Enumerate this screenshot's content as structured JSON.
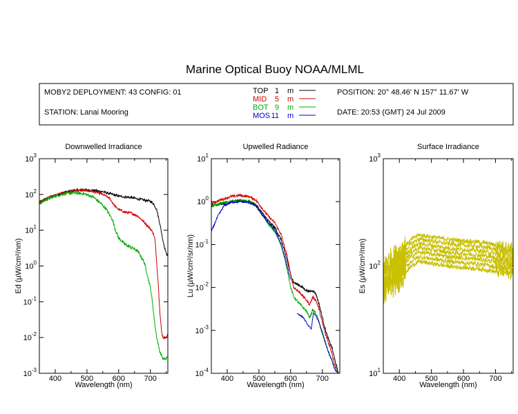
{
  "title": "Marine Optical Buoy NOAA/MLML",
  "info": {
    "deployment": "MOBY2 DEPLOYMENT: 43 CONFIG: 01",
    "station": "STATION: Lanai Mooring",
    "position": "POSITION: 20° 48.46' N   157° 11.67' W",
    "date": "DATE: 20:53 (GMT) 24 Jul 2009"
  },
  "legend": [
    {
      "name": "TOP",
      "depth": "1",
      "unit": "m",
      "color": "#000000"
    },
    {
      "name": "MID",
      "depth": "5",
      "unit": "m",
      "color": "#cc0000"
    },
    {
      "name": "BOT",
      "depth": "9",
      "unit": "m",
      "color": "#00aa00"
    },
    {
      "name": "MOS",
      "depth": "11",
      "unit": "m",
      "color": "#0000cc"
    }
  ],
  "chart_data": [
    {
      "type": "line",
      "title": "Downwelled Irradiance",
      "xlabel": "Wavelength (nm)",
      "ylabel_prefix": "Ed",
      "ylabel_unit": "(µW/cm²/nm)",
      "xlim": [
        350,
        755
      ],
      "ylim": [
        0.001,
        1000
      ],
      "yscale": "log",
      "xticks": [
        400,
        500,
        600,
        700
      ],
      "yticks": [
        {
          "v": 0.001,
          "b": "10",
          "e": "-3"
        },
        {
          "v": 0.01,
          "b": "10",
          "e": "-2"
        },
        {
          "v": 0.1,
          "b": "10",
          "e": "-1"
        },
        {
          "v": 1,
          "b": "10",
          "e": "0"
        },
        {
          "v": 10,
          "b": "10",
          "e": "1"
        },
        {
          "v": 100,
          "b": "10",
          "e": "2"
        },
        {
          "v": 1000,
          "b": "10",
          "e": "3"
        }
      ],
      "series": [
        {
          "name": "TOP",
          "color": "#000000",
          "noise": 0.08,
          "x": [
            350,
            370,
            400,
            430,
            460,
            490,
            520,
            550,
            580,
            600,
            620,
            640,
            660,
            680,
            700,
            710,
            720,
            730,
            740,
            750,
            755
          ],
          "y": [
            60,
            75,
            95,
            115,
            130,
            135,
            130,
            120,
            100,
            90,
            85,
            82,
            75,
            70,
            65,
            55,
            38,
            15,
            5,
            2.2,
            2
          ]
        },
        {
          "name": "MID",
          "color": "#cc0000",
          "noise": 0.08,
          "x": [
            350,
            370,
            400,
            430,
            460,
            490,
            520,
            550,
            570,
            580,
            590,
            600,
            620,
            640,
            660,
            680,
            700,
            710,
            715,
            720,
            725,
            730,
            735,
            740,
            750,
            755
          ],
          "y": [
            60,
            75,
            95,
            115,
            125,
            130,
            120,
            100,
            80,
            60,
            45,
            38,
            32,
            30,
            25,
            17,
            11,
            8,
            5,
            1.2,
            0.3,
            0.05,
            0.015,
            0.01,
            0.01,
            0.012
          ]
        },
        {
          "name": "BOT",
          "color": "#00aa00",
          "noise": 0.1,
          "x": [
            350,
            370,
            400,
            430,
            460,
            490,
            520,
            540,
            560,
            580,
            590,
            600,
            620,
            640,
            660,
            680,
            690,
            700,
            705,
            710,
            715,
            720,
            730,
            740,
            750,
            755
          ],
          "y": [
            55,
            70,
            90,
            105,
            110,
            105,
            85,
            60,
            40,
            20,
            10,
            6,
            4,
            3.3,
            2.6,
            1.3,
            0.6,
            0.25,
            0.12,
            0.05,
            0.02,
            0.01,
            0.004,
            0.0025,
            0.0025,
            0.003
          ]
        }
      ]
    },
    {
      "type": "line",
      "title": "Upwelled Radiance",
      "xlabel": "Wavelength (nm)",
      "ylabel_prefix": "Lu",
      "ylabel_unit": "(µW/cm²/sr/nm)",
      "xlim": [
        350,
        755
      ],
      "ylim": [
        0.0001,
        10
      ],
      "yscale": "log",
      "xticks": [
        400,
        500,
        600,
        700
      ],
      "yticks": [
        {
          "v": 0.0001,
          "b": "10",
          "e": "-4"
        },
        {
          "v": 0.001,
          "b": "10",
          "e": "-3"
        },
        {
          "v": 0.01,
          "b": "10",
          "e": "-2"
        },
        {
          "v": 0.1,
          "b": "10",
          "e": "-1"
        },
        {
          "v": 1,
          "b": "10",
          "e": "0"
        },
        {
          "v": 10,
          "b": "10",
          "e": "1"
        }
      ],
      "series": [
        {
          "name": "TOP",
          "color": "#000000",
          "noise": 0.07,
          "x": [
            350,
            380,
            410,
            440,
            470,
            490,
            510,
            530,
            550,
            570,
            590,
            600,
            610,
            630,
            650,
            660,
            670,
            680,
            690,
            700,
            710,
            720,
            730,
            740,
            750
          ],
          "y": [
            0.8,
            0.9,
            1.0,
            1.05,
            1.0,
            0.85,
            0.55,
            0.35,
            0.25,
            0.13,
            0.04,
            0.02,
            0.013,
            0.011,
            0.0085,
            0.008,
            0.0085,
            0.007,
            0.004,
            0.002,
            0.001,
            0.0006,
            0.0004,
            0.0002,
            0.0001
          ]
        },
        {
          "name": "MID",
          "color": "#cc0000",
          "noise": 0.07,
          "x": [
            350,
            380,
            410,
            440,
            470,
            490,
            510,
            530,
            550,
            570,
            590,
            600,
            610,
            630,
            650,
            660,
            670,
            680,
            690,
            700,
            710,
            720,
            730,
            740,
            750
          ],
          "y": [
            0.9,
            1.1,
            1.3,
            1.4,
            1.3,
            1.1,
            0.7,
            0.45,
            0.32,
            0.17,
            0.05,
            0.02,
            0.01,
            0.0075,
            0.005,
            0.004,
            0.006,
            0.005,
            0.003,
            0.0015,
            0.0008,
            0.0005,
            0.0003,
            0.00015,
            0.0001
          ]
        },
        {
          "name": "BOT",
          "color": "#00aa00",
          "noise": 0.07,
          "x": [
            350,
            380,
            410,
            440,
            470,
            490,
            510,
            530,
            550,
            570,
            590,
            600,
            610,
            630,
            650,
            660,
            670,
            680,
            690,
            700,
            710,
            720,
            730,
            740,
            750
          ],
          "y": [
            0.8,
            0.9,
            1.0,
            1.05,
            1.0,
            0.8,
            0.5,
            0.3,
            0.2,
            0.1,
            0.025,
            0.01,
            0.006,
            0.004,
            0.0028,
            0.002,
            0.003,
            0.0025,
            0.0015,
            0.0008,
            0.0005,
            0.0003,
            0.0002,
            0.00012,
            0.0001
          ]
        },
        {
          "name": "MOS",
          "color": "#0000cc",
          "noise": 0.05,
          "x": [
            350,
            370,
            390,
            410,
            440,
            470,
            490,
            510,
            530,
            550,
            570,
            590,
            600
          ],
          "y": [
            0.2,
            0.45,
            0.8,
            0.95,
            1.0,
            0.95,
            0.8,
            0.5,
            0.32,
            0.22,
            0.1,
            0.03,
            0.015
          ]
        },
        {
          "name": "MOS",
          "color": "#0000cc",
          "noise": 0.03,
          "x": [
            620,
            640,
            655,
            665,
            672,
            680,
            690,
            700,
            710,
            720,
            730,
            740,
            750
          ],
          "y": [
            0.0025,
            0.002,
            0.0013,
            0.0011,
            0.0025,
            0.0022,
            0.0015,
            0.0009,
            0.0005,
            0.0003,
            0.0002,
            0.00012,
            0.0001
          ]
        }
      ]
    },
    {
      "type": "line",
      "title": "Surface Irradiance",
      "xlabel": "Wavelength (nm)",
      "ylabel_prefix": "Es",
      "ylabel_unit": "(µW/cm²/nm)",
      "xlim": [
        350,
        755
      ],
      "ylim": [
        10,
        1000
      ],
      "yscale": "log",
      "xticks": [
        400,
        500,
        600,
        700
      ],
      "yticks": [
        {
          "v": 10,
          "b": "10",
          "e": "1"
        },
        {
          "v": 100,
          "b": "10",
          "e": "2"
        },
        {
          "v": 1000,
          "b": "10",
          "e": "3"
        }
      ],
      "series_color": "#c8c000",
      "shape": {
        "x": [
          350,
          360,
          380,
          400,
          420,
          440,
          460,
          480,
          500,
          530,
          560,
          600,
          640,
          680,
          700,
          720,
          740,
          755
        ],
        "y": [
          0.45,
          0.55,
          0.6,
          0.68,
          0.8,
          0.92,
          1.0,
          0.98,
          0.96,
          0.93,
          0.9,
          0.88,
          0.86,
          0.83,
          0.8,
          0.79,
          0.77,
          0.76
        ]
      },
      "scales": [
        195,
        178,
        162,
        148,
        135,
        122,
        110
      ]
    }
  ]
}
